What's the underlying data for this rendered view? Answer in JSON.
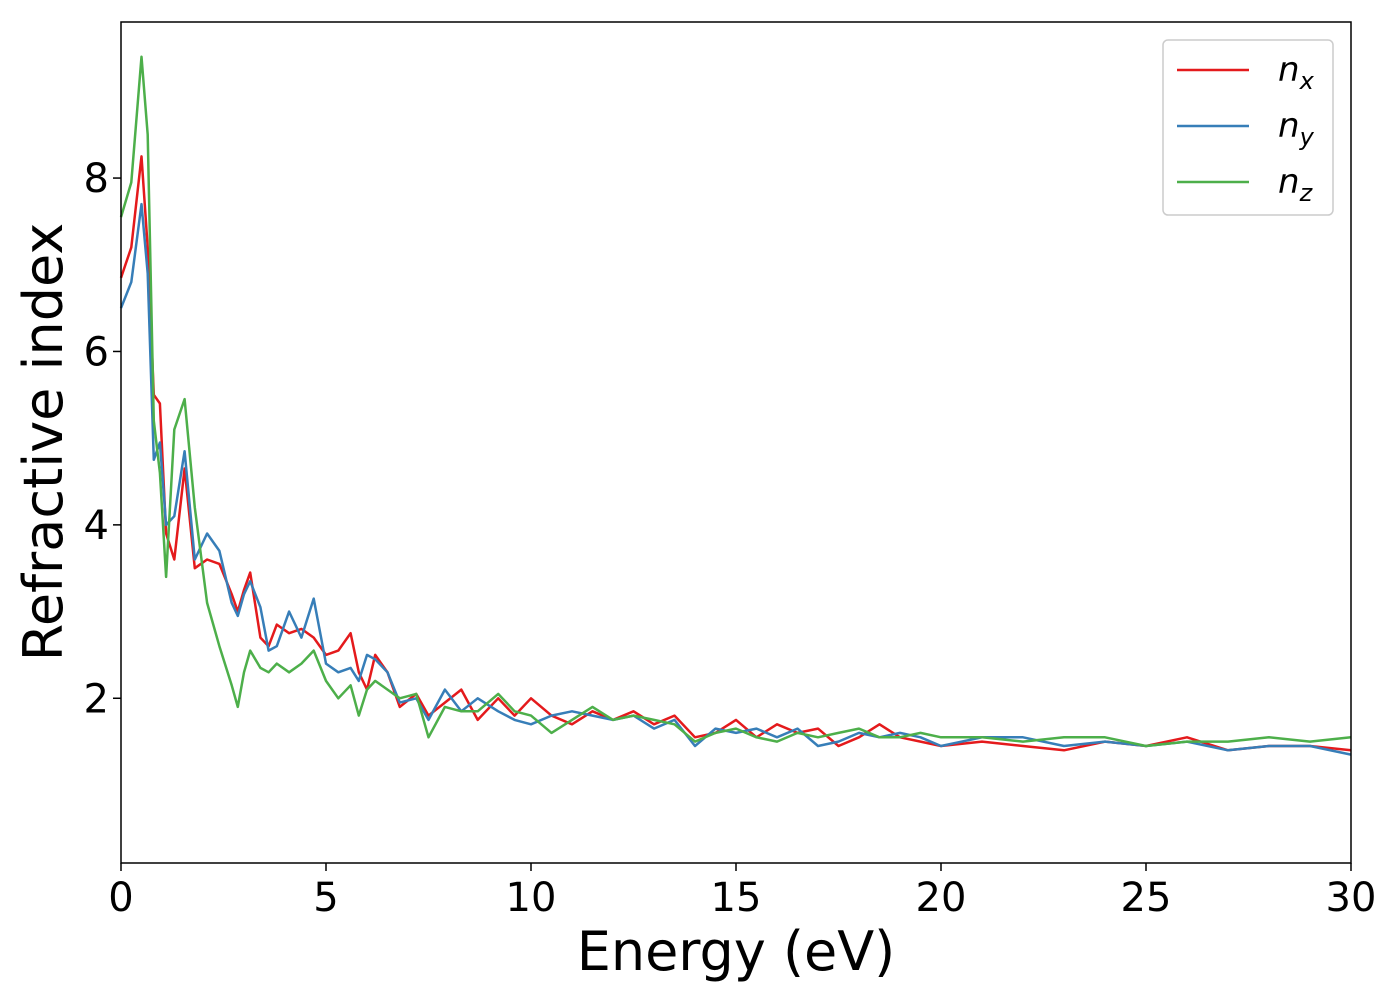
{
  "chart_data": {
    "type": "line",
    "xlabel": "Energy (eV)",
    "ylabel": "Refractive index",
    "xlim": [
      0,
      30
    ],
    "ylim": [
      0.1,
      9.8
    ],
    "xticks": [
      0,
      5,
      10,
      15,
      20,
      25,
      30
    ],
    "yticks": [
      2,
      4,
      6,
      8
    ],
    "grid": false,
    "legend": "top-right",
    "series": [
      {
        "name": "n",
        "subscript": "x",
        "color": "#e41a1c",
        "x": [
          0,
          0.25,
          0.5,
          0.65,
          0.8,
          0.95,
          1.1,
          1.3,
          1.55,
          1.8,
          2.1,
          2.4,
          2.7,
          2.85,
          3.0,
          3.15,
          3.4,
          3.6,
          3.8,
          4.1,
          4.4,
          4.7,
          5.0,
          5.3,
          5.6,
          5.8,
          6.0,
          6.2,
          6.5,
          6.8,
          7.2,
          7.5,
          7.9,
          8.3,
          8.7,
          9.2,
          9.6,
          10.0,
          10.5,
          11.0,
          11.5,
          12.0,
          12.5,
          13.0,
          13.5,
          14.0,
          14.5,
          15.0,
          15.5,
          16.0,
          16.5,
          17.0,
          17.5,
          18.0,
          18.5,
          19.0,
          19.5,
          20.0,
          21.0,
          22.0,
          23.0,
          24.0,
          25.0,
          26.0,
          27.0,
          28.0,
          29.0,
          30.0
        ],
        "values": [
          6.85,
          7.2,
          8.25,
          7.2,
          5.5,
          5.4,
          3.9,
          3.6,
          4.65,
          3.5,
          3.6,
          3.55,
          3.2,
          3.0,
          3.25,
          3.45,
          2.7,
          2.6,
          2.85,
          2.75,
          2.8,
          2.7,
          2.5,
          2.55,
          2.75,
          2.3,
          2.1,
          2.5,
          2.3,
          1.9,
          2.05,
          1.8,
          1.95,
          2.1,
          1.75,
          2.0,
          1.8,
          2.0,
          1.8,
          1.7,
          1.85,
          1.75,
          1.85,
          1.7,
          1.8,
          1.55,
          1.6,
          1.75,
          1.55,
          1.7,
          1.6,
          1.65,
          1.45,
          1.55,
          1.7,
          1.55,
          1.5,
          1.45,
          1.5,
          1.45,
          1.4,
          1.5,
          1.45,
          1.55,
          1.4,
          1.45,
          1.45,
          1.4
        ]
      },
      {
        "name": "n",
        "subscript": "y",
        "color": "#377eb8",
        "x": [
          0,
          0.25,
          0.5,
          0.65,
          0.8,
          0.95,
          1.1,
          1.3,
          1.55,
          1.8,
          2.1,
          2.4,
          2.7,
          2.85,
          3.0,
          3.15,
          3.4,
          3.6,
          3.8,
          4.1,
          4.4,
          4.7,
          5.0,
          5.3,
          5.6,
          5.8,
          6.0,
          6.2,
          6.5,
          6.8,
          7.2,
          7.5,
          7.9,
          8.3,
          8.7,
          9.2,
          9.6,
          10.0,
          10.5,
          11.0,
          11.5,
          12.0,
          12.5,
          13.0,
          13.5,
          14.0,
          14.5,
          15.0,
          15.5,
          16.0,
          16.5,
          17.0,
          17.5,
          18.0,
          18.5,
          19.0,
          19.5,
          20.0,
          21.0,
          22.0,
          23.0,
          24.0,
          25.0,
          26.0,
          27.0,
          28.0,
          29.0,
          30.0
        ],
        "values": [
          6.5,
          6.8,
          7.7,
          6.9,
          4.75,
          4.95,
          4.0,
          4.1,
          4.85,
          3.6,
          3.9,
          3.7,
          3.1,
          2.95,
          3.2,
          3.35,
          3.05,
          2.55,
          2.6,
          3.0,
          2.7,
          3.15,
          2.4,
          2.3,
          2.35,
          2.2,
          2.5,
          2.45,
          2.3,
          1.95,
          2.0,
          1.75,
          2.1,
          1.85,
          2.0,
          1.85,
          1.75,
          1.7,
          1.8,
          1.85,
          1.8,
          1.75,
          1.8,
          1.65,
          1.75,
          1.45,
          1.65,
          1.6,
          1.65,
          1.55,
          1.65,
          1.45,
          1.5,
          1.6,
          1.55,
          1.6,
          1.55,
          1.45,
          1.55,
          1.55,
          1.45,
          1.5,
          1.45,
          1.5,
          1.4,
          1.45,
          1.45,
          1.35
        ]
      },
      {
        "name": "n",
        "subscript": "z",
        "color": "#4daf4a",
        "x": [
          0,
          0.25,
          0.5,
          0.65,
          0.8,
          0.95,
          1.1,
          1.3,
          1.55,
          1.8,
          2.1,
          2.4,
          2.7,
          2.85,
          3.0,
          3.15,
          3.4,
          3.6,
          3.8,
          4.1,
          4.4,
          4.7,
          5.0,
          5.3,
          5.6,
          5.8,
          6.0,
          6.2,
          6.5,
          6.8,
          7.2,
          7.5,
          7.9,
          8.3,
          8.7,
          9.2,
          9.6,
          10.0,
          10.5,
          11.0,
          11.5,
          12.0,
          12.5,
          13.0,
          13.5,
          14.0,
          14.5,
          15.0,
          15.5,
          16.0,
          16.5,
          17.0,
          17.5,
          18.0,
          18.5,
          19.0,
          19.5,
          20.0,
          21.0,
          22.0,
          23.0,
          24.0,
          25.0,
          26.0,
          27.0,
          28.0,
          29.0,
          30.0
        ],
        "values": [
          7.55,
          7.95,
          9.4,
          8.5,
          5.2,
          4.6,
          3.4,
          5.1,
          5.45,
          4.2,
          3.1,
          2.6,
          2.15,
          1.9,
          2.3,
          2.55,
          2.35,
          2.3,
          2.4,
          2.3,
          2.4,
          2.55,
          2.2,
          2.0,
          2.15,
          1.8,
          2.1,
          2.2,
          2.1,
          2.0,
          2.05,
          1.55,
          1.9,
          1.85,
          1.85,
          2.05,
          1.85,
          1.8,
          1.6,
          1.75,
          1.9,
          1.75,
          1.8,
          1.75,
          1.7,
          1.5,
          1.6,
          1.65,
          1.55,
          1.5,
          1.6,
          1.55,
          1.6,
          1.65,
          1.55,
          1.55,
          1.6,
          1.55,
          1.55,
          1.5,
          1.55,
          1.55,
          1.45,
          1.5,
          1.5,
          1.55,
          1.5,
          1.55
        ]
      }
    ]
  }
}
